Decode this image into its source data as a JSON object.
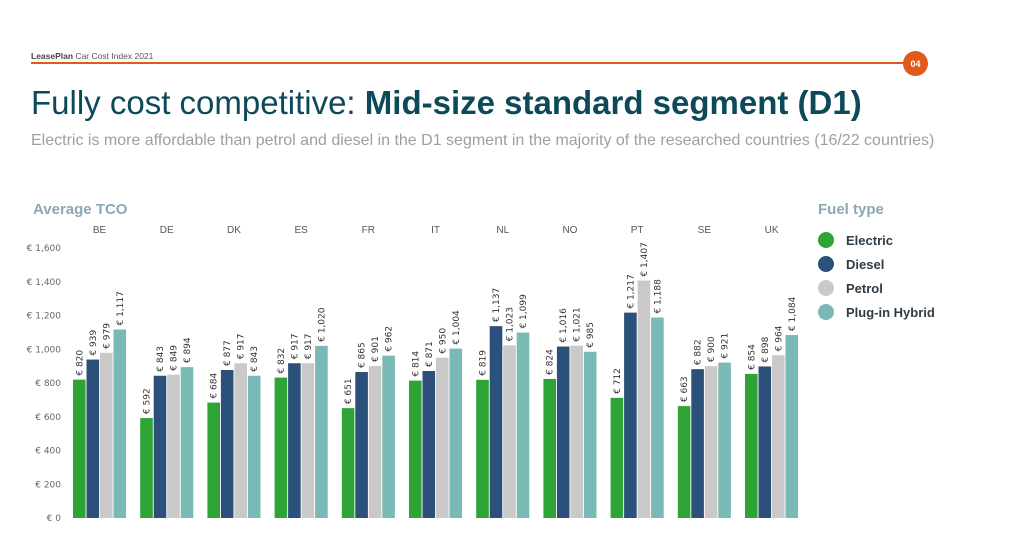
{
  "header": {
    "brand_bold": "LeasePlan",
    "brand_rest": " Car Cost Index 2021",
    "page_number": "04"
  },
  "title": {
    "regular": "Fully cost competitive: ",
    "bold": "Mid-size standard segment (D1)"
  },
  "subtitle": "Electric is more affordable than petrol and diesel in the D1 segment in the majority of the researched countries (16/22 countries)",
  "colors": {
    "accent": "#e05a1b",
    "electric": "#2ea336",
    "diesel": "#2b5079",
    "petrol": "#c9c9c9",
    "plugin_hybrid": "#7ab9b5"
  },
  "legend": {
    "title": "Fuel type",
    "items": [
      {
        "label": "Electric",
        "color": "#2ea336"
      },
      {
        "label": "Diesel",
        "color": "#2b5079"
      },
      {
        "label": "Petrol",
        "color": "#c9c9c9"
      },
      {
        "label": "Plug-in Hybrid",
        "color": "#7ab9b5"
      }
    ]
  },
  "chart_data": {
    "type": "bar",
    "ylabel": "Average TCO",
    "ylim": [
      0,
      1600
    ],
    "yticks": [
      0,
      200,
      400,
      600,
      800,
      1000,
      1200,
      1400,
      1600
    ],
    "ytick_labels": [
      "€ 0",
      "€ 200",
      "€ 400",
      "€ 600",
      "€ 800",
      "€ 1,000",
      "€ 1,200",
      "€ 1,400",
      "€ 1,600"
    ],
    "categories": [
      "BE",
      "DE",
      "DK",
      "ES",
      "FR",
      "IT",
      "NL",
      "NO",
      "PT",
      "SE",
      "UK"
    ],
    "legend_position": "right",
    "grid": false,
    "series": [
      {
        "name": "Electric",
        "color": "#2ea336",
        "values": [
          820,
          592,
          684,
          832,
          651,
          814,
          819,
          824,
          712,
          663,
          854
        ],
        "labels": [
          "€ 820",
          "€ 592",
          "€ 684",
          "€ 832",
          "€ 651",
          "€ 814",
          "€ 819",
          "€ 824",
          "€ 712",
          "€ 663",
          "€ 854"
        ]
      },
      {
        "name": "Diesel",
        "color": "#2b5079",
        "values": [
          939,
          843,
          877,
          917,
          865,
          871,
          1137,
          1016,
          1217,
          882,
          898
        ],
        "labels": [
          "€ 939",
          "€ 843",
          "€ 877",
          "€ 917",
          "€ 865",
          "€ 871",
          "€ 1,137",
          "€ 1,016",
          "€ 1,217",
          "€ 882",
          "€ 898"
        ]
      },
      {
        "name": "Petrol",
        "color": "#c9c9c9",
        "values": [
          979,
          849,
          917,
          917,
          901,
          950,
          1023,
          1021,
          1407,
          900,
          964
        ],
        "labels": [
          "€ 979",
          "€ 849",
          "€ 917",
          "€ 917",
          "€ 901",
          "€ 950",
          "€ 1,023",
          "€ 1,021",
          "€ 1,407",
          "€ 900",
          "€ 964"
        ]
      },
      {
        "name": "Plug-in Hybrid",
        "color": "#7ab9b5",
        "values": [
          1117,
          894,
          843,
          1020,
          962,
          1004,
          1099,
          985,
          1188,
          921,
          1084
        ],
        "labels": [
          "€ 1,117",
          "€ 894",
          "€ 843",
          "€ 1,020",
          "€ 962",
          "€ 1,004",
          "€ 1,099",
          "€ 985",
          "€ 1,188",
          "€ 921",
          "€ 1,084"
        ]
      }
    ]
  }
}
